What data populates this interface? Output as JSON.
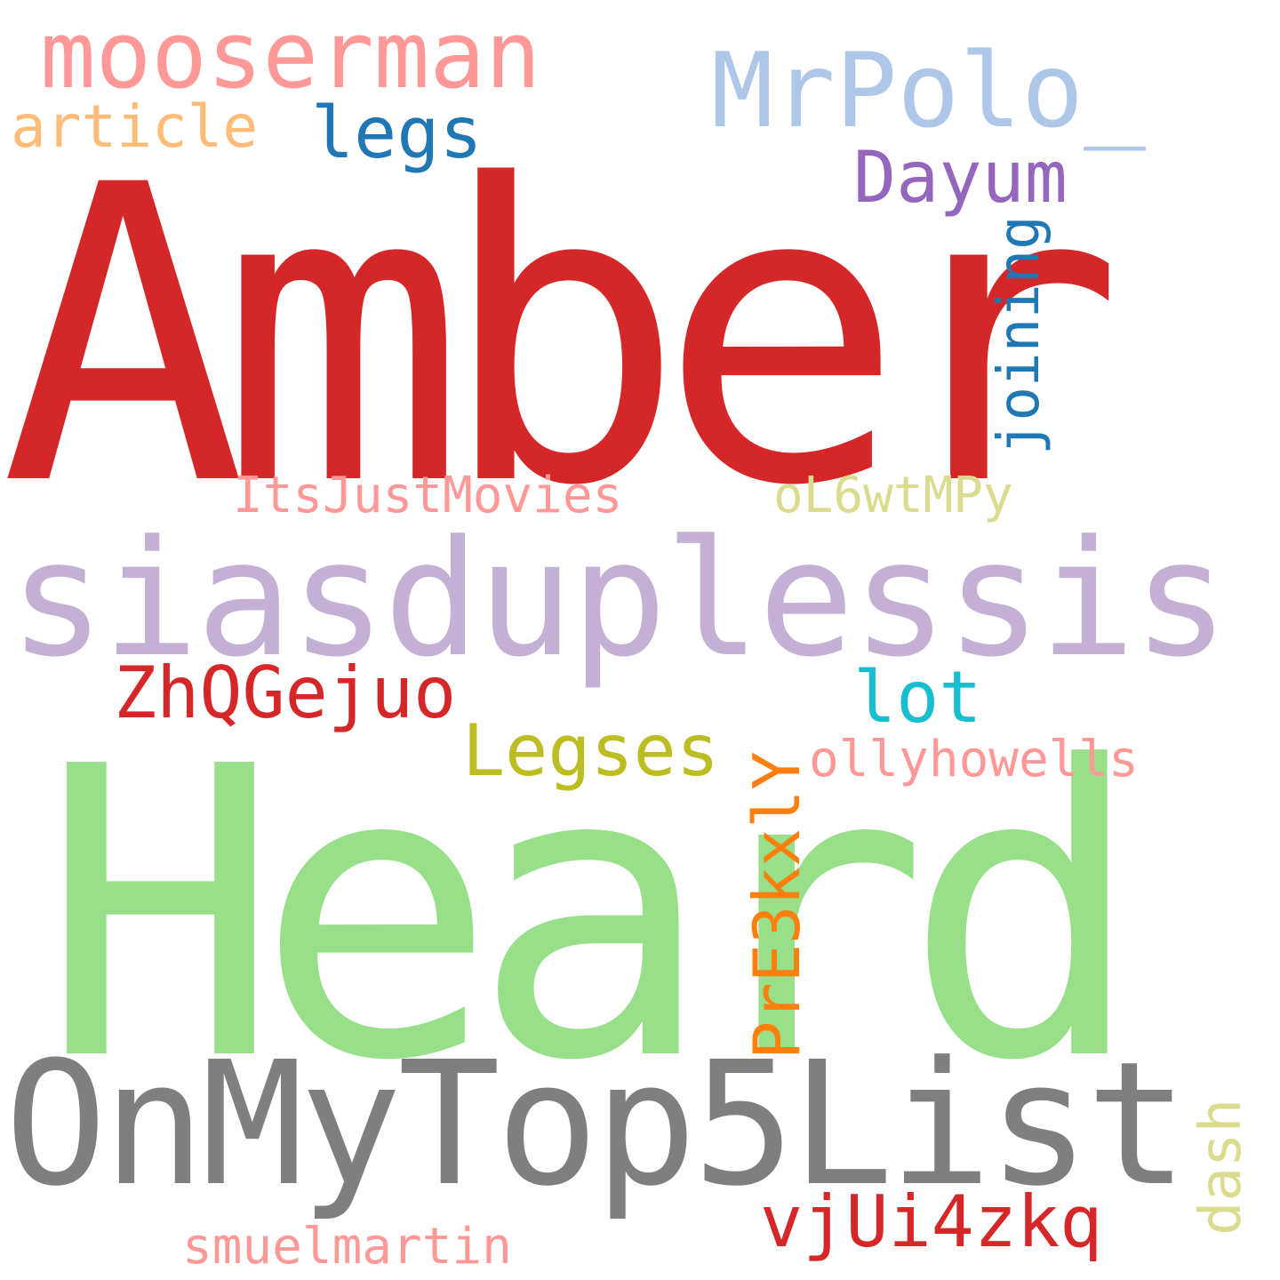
{
  "words": {
    "amber": {
      "text": "Amber",
      "color": "#d62728"
    },
    "heard": {
      "text": "Heard",
      "color": "#98df8a"
    },
    "siasduplessis": {
      "text": "siasduplessis",
      "color": "#c5b0d5"
    },
    "onmytop5list": {
      "text": "OnMyTop5List",
      "color": "#7f7f7f"
    },
    "mooserman": {
      "text": "mooserman",
      "color": "#ff9896"
    },
    "mrpolo": {
      "text": "MrPolo_",
      "color": "#aec7e8"
    },
    "article": {
      "text": "article",
      "color": "#ffbb78"
    },
    "legs": {
      "text": "legs",
      "color": "#1f77b4"
    },
    "dayum": {
      "text": "Dayum",
      "color": "#9467bd"
    },
    "joining": {
      "text": "joining",
      "color": "#1f77b4"
    },
    "itsjustmovies": {
      "text": "ItsJustMovies",
      "color": "#ff9896"
    },
    "ol6wtmpy": {
      "text": "oL6wtMPy",
      "color": "#dbdb8d"
    },
    "zhqgejuo": {
      "text": "ZhQGejuo",
      "color": "#d62728"
    },
    "lot": {
      "text": "lot",
      "color": "#17becf"
    },
    "legses": {
      "text": "Legses",
      "color": "#bcbd22"
    },
    "pre3kxly": {
      "text": "PrE3kxlY",
      "color": "#ff7f0e"
    },
    "ollyhowells": {
      "text": "ollyhowells",
      "color": "#ff9896"
    },
    "vjui4zkq": {
      "text": "vjUi4zkq",
      "color": "#d62728"
    },
    "dash": {
      "text": "dash",
      "color": "#dbdb8d"
    },
    "smuelmartin": {
      "text": "smuelmartin",
      "color": "#ff9896"
    }
  }
}
